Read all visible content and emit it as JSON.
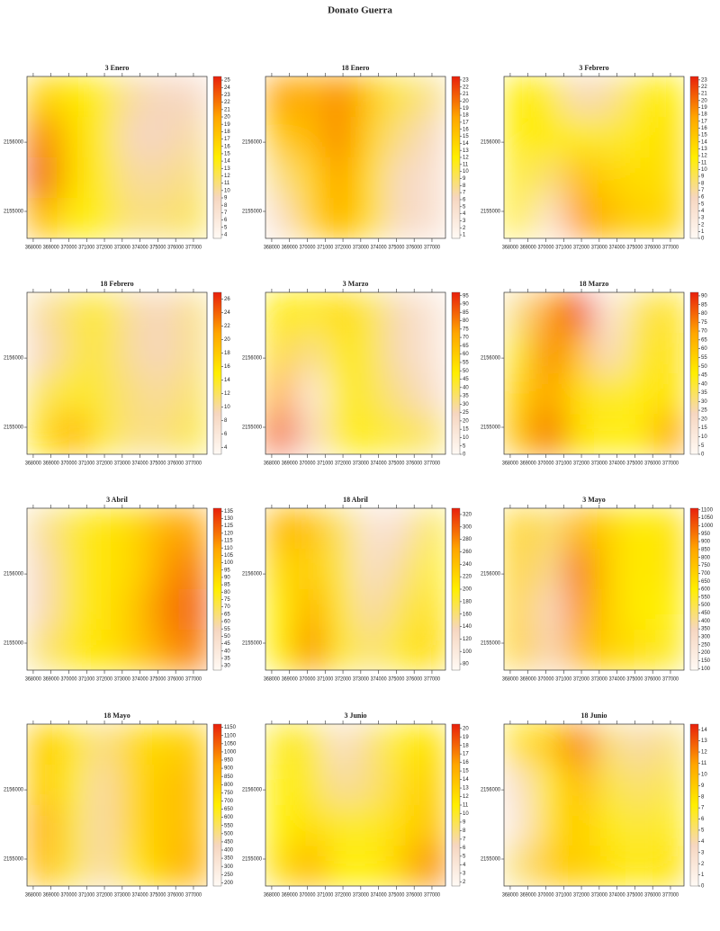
{
  "chart_data": {
    "type": "heatmap",
    "title": "Donato Guerra",
    "xlim": [
      367650,
      377760
    ],
    "xticks": [
      368000,
      369000,
      370000,
      371000,
      372000,
      373000,
      374000,
      375000,
      376000,
      377000
    ],
    "ylim": [
      2154610,
      2156950
    ],
    "yticks": [
      2155000,
      2156000
    ],
    "colormap": [
      "#fffaf5",
      "#f6d6c0",
      "#ffee00",
      "#ffa500",
      "#e8200c"
    ],
    "panels": [
      {
        "title": "3 Enero",
        "zlim": [
          3.5,
          25.5
        ],
        "zticks": [
          4,
          5,
          6,
          7,
          8,
          9,
          10,
          11,
          12,
          13,
          14,
          15,
          16,
          17,
          18,
          19,
          20,
          21,
          22,
          23,
          24,
          25
        ],
        "values": [
          [
            17,
            15,
            14,
            10,
            9,
            9
          ],
          [
            22,
            16,
            14,
            9,
            9,
            10
          ],
          [
            24,
            16,
            14,
            10,
            10,
            11
          ],
          [
            19,
            14,
            14,
            11,
            11,
            12
          ]
        ]
      },
      {
        "title": "18 Enero",
        "zlim": [
          0.5,
          23.5
        ],
        "zticks": [
          1,
          2,
          3,
          4,
          5,
          6,
          7,
          8,
          9,
          10,
          11,
          12,
          13,
          14,
          15,
          16,
          17,
          18,
          19,
          20,
          21,
          22,
          23
        ],
        "values": [
          [
            18,
            17,
            19,
            15,
            10,
            8
          ],
          [
            15,
            16,
            19,
            14,
            8,
            6
          ],
          [
            8,
            14,
            18,
            13,
            6,
            5
          ],
          [
            5,
            14,
            17,
            13,
            6,
            5
          ]
        ]
      },
      {
        "title": "3 Febrero",
        "zlim": [
          0,
          23.5
        ],
        "zticks": [
          0,
          1,
          2,
          3,
          4,
          5,
          6,
          7,
          8,
          9,
          10,
          11,
          12,
          13,
          14,
          15,
          16,
          17,
          18,
          19,
          20,
          21,
          22,
          23
        ],
        "values": [
          [
            12,
            11,
            6,
            7,
            11,
            12
          ],
          [
            12,
            12,
            11,
            10,
            12,
            13
          ],
          [
            11,
            8,
            16,
            14,
            13,
            13
          ],
          [
            12,
            3,
            18,
            16,
            14,
            14
          ]
        ]
      },
      {
        "title": "18 Febrero",
        "zlim": [
          3,
          27
        ],
        "zticks": [
          4,
          6,
          8,
          10,
          12,
          14,
          16,
          18,
          20,
          22,
          24,
          26
        ],
        "values": [
          [
            10,
            12,
            14,
            10,
            9,
            11
          ],
          [
            9,
            12,
            13,
            10,
            9,
            11
          ],
          [
            12,
            14,
            13,
            11,
            10,
            12
          ],
          [
            16,
            20,
            14,
            11,
            11,
            13
          ]
        ]
      },
      {
        "title": "3 Marzo",
        "zlim": [
          0,
          97
        ],
        "zticks": [
          0,
          5,
          10,
          15,
          20,
          25,
          30,
          35,
          40,
          45,
          50,
          55,
          60,
          65,
          70,
          75,
          80,
          85,
          90,
          95
        ],
        "values": [
          [
            50,
            45,
            55,
            40,
            25,
            15
          ],
          [
            55,
            30,
            50,
            40,
            25,
            15
          ],
          [
            70,
            10,
            45,
            40,
            30,
            20
          ],
          [
            85,
            20,
            45,
            45,
            40,
            35
          ]
        ]
      },
      {
        "title": "18 Marzo",
        "zlim": [
          0,
          92
        ],
        "zticks": [
          0,
          5,
          10,
          15,
          20,
          25,
          30,
          35,
          40,
          45,
          50,
          55,
          60,
          65,
          70,
          75,
          80,
          85,
          90
        ],
        "values": [
          [
            30,
            70,
            85,
            10,
            35,
            50
          ],
          [
            40,
            75,
            60,
            20,
            40,
            50
          ],
          [
            55,
            70,
            50,
            40,
            45,
            50
          ],
          [
            60,
            80,
            50,
            45,
            45,
            70
          ]
        ]
      },
      {
        "title": "3 Abril",
        "zlim": [
          27,
          137
        ],
        "zticks": [
          30,
          35,
          40,
          45,
          50,
          55,
          60,
          65,
          70,
          75,
          80,
          85,
          90,
          95,
          100,
          105,
          110,
          115,
          120,
          125,
          130,
          135
        ],
        "values": [
          [
            60,
            75,
            85,
            90,
            105,
            110
          ],
          [
            55,
            75,
            85,
            90,
            110,
            120
          ],
          [
            55,
            75,
            85,
            95,
            115,
            125
          ],
          [
            65,
            85,
            85,
            95,
            110,
            120
          ]
        ]
      },
      {
        "title": "18 Abril",
        "zlim": [
          70,
          330
        ],
        "zticks": [
          80,
          100,
          120,
          140,
          160,
          180,
          200,
          220,
          240,
          260,
          280,
          300,
          320
        ],
        "values": [
          [
            250,
            240,
            170,
            110,
            120,
            180
          ],
          [
            220,
            230,
            180,
            120,
            150,
            200
          ],
          [
            200,
            260,
            190,
            140,
            170,
            210
          ],
          [
            200,
            280,
            190,
            160,
            190,
            220
          ]
        ]
      },
      {
        "title": "3 Mayo",
        "zlim": [
          90,
          1110
        ],
        "zticks": [
          100,
          150,
          200,
          250,
          300,
          350,
          400,
          450,
          500,
          550,
          600,
          650,
          700,
          750,
          800,
          850,
          900,
          950,
          1000,
          1050,
          1100
        ],
        "values": [
          [
            700,
            450,
            800,
            700,
            600,
            650
          ],
          [
            700,
            400,
            950,
            700,
            600,
            650
          ],
          [
            700,
            300,
            900,
            700,
            600,
            600
          ],
          [
            700,
            350,
            800,
            700,
            650,
            550
          ]
        ]
      },
      {
        "title": "18 Mayo",
        "zlim": [
          180,
          1170
        ],
        "zticks": [
          200,
          250,
          300,
          350,
          400,
          450,
          500,
          550,
          600,
          650,
          700,
          750,
          800,
          850,
          900,
          950,
          1000,
          1050,
          1100,
          1150
        ],
        "values": [
          [
            800,
            700,
            500,
            750,
            750,
            800
          ],
          [
            800,
            650,
            450,
            750,
            800,
            850
          ],
          [
            900,
            600,
            450,
            750,
            800,
            850
          ],
          [
            850,
            600,
            450,
            700,
            800,
            900
          ]
        ]
      },
      {
        "title": "3 Junio",
        "zlim": [
          1.5,
          20.5
        ],
        "zticks": [
          2,
          3,
          4,
          5,
          6,
          7,
          8,
          9,
          10,
          11,
          12,
          13,
          14,
          15,
          16,
          17,
          18,
          19,
          20
        ],
        "values": [
          [
            10,
            10,
            5,
            8,
            11,
            12
          ],
          [
            11,
            10,
            7,
            8,
            12,
            13
          ],
          [
            11,
            12,
            10,
            10,
            12,
            14
          ],
          [
            12,
            15,
            11,
            11,
            13,
            17
          ]
        ]
      },
      {
        "title": "18 Junio",
        "zlim": [
          0,
          14.5
        ],
        "zticks": [
          0,
          1,
          2,
          3,
          4,
          5,
          6,
          7,
          8,
          9,
          10,
          11,
          12,
          13,
          14
        ],
        "values": [
          [
            8,
            9,
            12,
            5,
            4,
            5
          ],
          [
            3,
            7,
            10,
            6,
            5,
            6
          ],
          [
            2,
            8,
            9,
            7,
            6,
            7
          ],
          [
            5,
            9,
            9,
            8,
            7,
            8
          ]
        ]
      }
    ]
  }
}
